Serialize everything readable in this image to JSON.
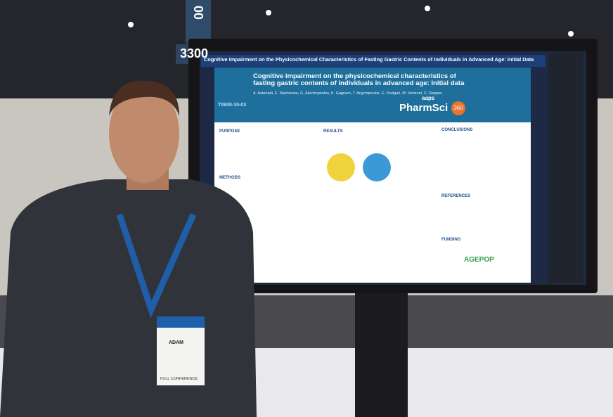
{
  "signs": {
    "booth_number": "3300",
    "pillar": "00"
  },
  "screen": {
    "title": "Cognitive Impairment on the Physicochemical Characteristics of Fasting Gastric Contents of Individuals in Advanced Age: Initial Data",
    "poster": {
      "code": "T0930-10-03",
      "title": "Cognitive impairment on the physicochemical characteristics of fasting gastric contents of individuals in advanced age: Initial data",
      "authors": "A. Asteriadi, E. Stachanou, G. Alevizopoulos, K. Gagnam, T. Argyropoulos, E. Voulgari, M. Vertzoni, C. Reppas",
      "brand": "aaps",
      "event": "PharmSci",
      "event_number": "360",
      "sections": [
        "PURPOSE",
        "METHODS",
        "RESULTS",
        "CONCLUSIONS",
        "REFERENCES",
        "FUNDING"
      ],
      "funder": "AGEPOP"
    }
  },
  "badge": {
    "name": "ADAM",
    "pass": "FULL CONFERENCE"
  }
}
